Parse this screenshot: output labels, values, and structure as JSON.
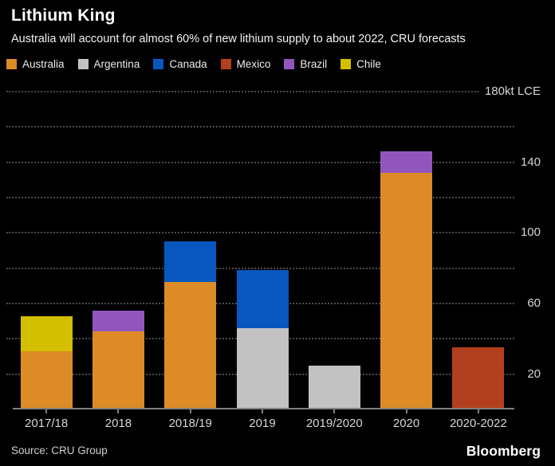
{
  "header": {
    "title": "Lithium King",
    "subtitle": "Australia will account for almost 60% of new lithium supply to about 2022, CRU forecasts"
  },
  "footer": {
    "source": "Source: CRU Group",
    "brand": "Bloomberg"
  },
  "colors": {
    "background": "#000000",
    "title_text": "#ffffff",
    "axis_text": "#d6d6d6",
    "gridline": "#4d4d4d",
    "baseline": "#7f7f7f"
  },
  "chart_data": {
    "type": "bar",
    "stacked": true,
    "title": "Lithium King",
    "subtitle": "Australia will account for almost 60% of new lithium supply to about 2022, CRU forecasts",
    "unit": "kt LCE",
    "categories": [
      "2017/18",
      "2018",
      "2018/19",
      "2019",
      "2019/2020",
      "2020",
      "2020-2022"
    ],
    "series": [
      {
        "name": "Australia",
        "color": "#DC8B27",
        "values": [
          33,
          44,
          72,
          0,
          0,
          134,
          0
        ]
      },
      {
        "name": "Argentina",
        "color": "#C2C2C2",
        "values": [
          0,
          0,
          0,
          46,
          25,
          0,
          0
        ]
      },
      {
        "name": "Canada",
        "color": "#0757BF",
        "values": [
          0,
          0,
          23,
          33,
          0,
          0,
          0
        ]
      },
      {
        "name": "Mexico",
        "color": "#B2401E",
        "values": [
          0,
          0,
          0,
          0,
          0,
          0,
          35
        ]
      },
      {
        "name": "Brazil",
        "color": "#9156BE",
        "values": [
          0,
          12,
          0,
          0,
          0,
          12,
          0
        ]
      },
      {
        "name": "Chile",
        "color": "#D3BE00",
        "values": [
          20,
          0,
          0,
          0,
          0,
          0,
          0
        ]
      }
    ],
    "totals": [
      53,
      56,
      95,
      79,
      25,
      146,
      35
    ],
    "ylim": [
      0,
      180
    ],
    "grid_step": 20,
    "labeled_ticks": [
      20,
      60,
      100,
      140,
      180
    ],
    "y_axis_top_label": "180kt LCE",
    "legend_position": "top",
    "grid": true
  }
}
